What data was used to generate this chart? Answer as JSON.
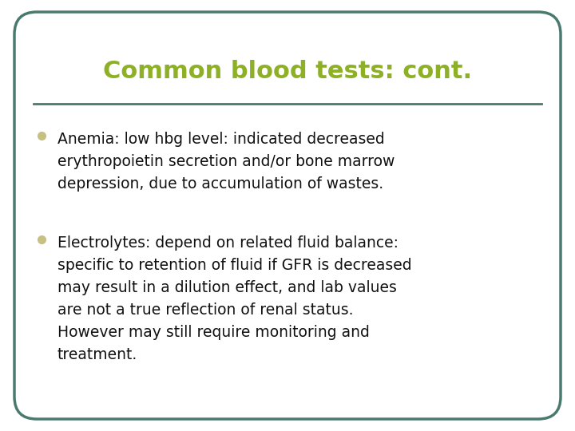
{
  "title": "Common blood tests: cont.",
  "title_color": "#8db026",
  "title_fontsize": 22,
  "background_color": "#ffffff",
  "border_color": "#4a7a6e",
  "border_linewidth": 2.5,
  "separator_color": "#4a7a6e",
  "separator_linewidth": 2,
  "bullet_color": "#c8c080",
  "bullet_size": 7,
  "text_color": "#111111",
  "text_fontsize": 13.5,
  "bullet1": "Anemia: low hbg level: indicated decreased\nerythropoietin secretion and/or bone marrow\ndepression, due to accumulation of wastes.",
  "bullet2": "Electrolytes: depend on related fluid balance:\nspecific to retention of fluid if GFR is decreased\nmay result in a dilution effect, and lab values\nare not a true reflection of renal status.\nHowever may still require monitoring and\ntreatment."
}
